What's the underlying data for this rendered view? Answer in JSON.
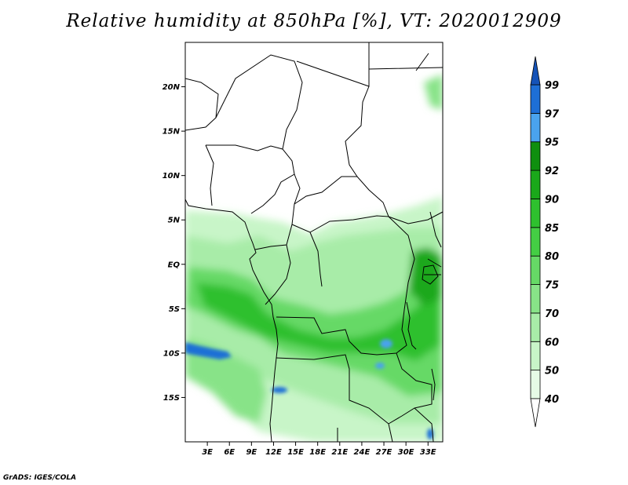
{
  "title": "Relative humidity at 850hPa [%], VT: 2020012909",
  "credit": "GrADS: IGES/COLA",
  "map": {
    "lon_range": [
      0,
      35
    ],
    "lat_range": [
      -20,
      25
    ],
    "lat_ticks": [
      {
        "value": 20,
        "label": "20N"
      },
      {
        "value": 15,
        "label": "15N"
      },
      {
        "value": 10,
        "label": "10N"
      },
      {
        "value": 5,
        "label": "5N"
      },
      {
        "value": 0,
        "label": "EQ"
      },
      {
        "value": -5,
        "label": "5S"
      },
      {
        "value": -10,
        "label": "10S"
      },
      {
        "value": -15,
        "label": "15S"
      }
    ],
    "lon_ticks": [
      {
        "value": 3,
        "label": "3E"
      },
      {
        "value": 6,
        "label": "6E"
      },
      {
        "value": 9,
        "label": "9E"
      },
      {
        "value": 12,
        "label": "12E"
      },
      {
        "value": 15,
        "label": "15E"
      },
      {
        "value": 18,
        "label": "18E"
      },
      {
        "value": 21,
        "label": "21E"
      },
      {
        "value": 24,
        "label": "24E"
      },
      {
        "value": 27,
        "label": "27E"
      },
      {
        "value": 30,
        "label": "30E"
      },
      {
        "value": 33,
        "label": "33E"
      }
    ]
  },
  "colorbar": {
    "levels": [
      "40",
      "50",
      "60",
      "70",
      "75",
      "80",
      "85",
      "90",
      "92",
      "95",
      "97",
      "99"
    ],
    "colors": [
      "#ffffff",
      "#e6fae6",
      "#c8f5c8",
      "#a8eca8",
      "#88e388",
      "#66d966",
      "#44ce44",
      "#2ec02e",
      "#1aa81a",
      "#0f8f0f",
      "#4aa3ee",
      "#1e6fd6",
      "#1553b8"
    ]
  },
  "colors": {
    "border": "#000000",
    "field_light": "#c8f5c8",
    "field_mid": "#66d966",
    "field_dark": "#2ec02e",
    "field_blue": "#1e6fd6"
  }
}
